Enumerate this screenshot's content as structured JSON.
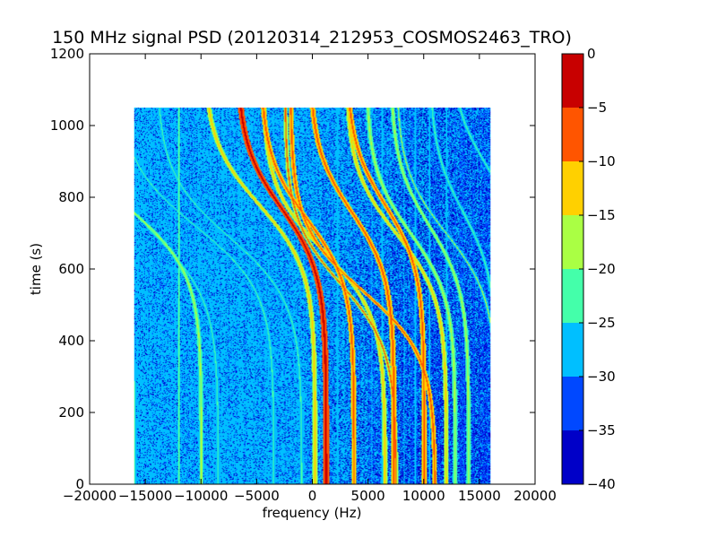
{
  "chart_data": {
    "type": "heatmap",
    "title": "150 MHz signal PSD (20120314_212953_COSMOS2463_TRO)",
    "xlabel": "frequency (Hz)",
    "ylabel": "time (s)",
    "xlim": [
      -20000,
      20000
    ],
    "ylim": [
      0,
      1200
    ],
    "xticks": [
      -20000,
      -15000,
      -10000,
      -5000,
      0,
      5000,
      10000,
      15000,
      20000
    ],
    "yticks": [
      0,
      200,
      400,
      600,
      800,
      1000,
      1200
    ],
    "data_extent": {
      "x": [
        -16000,
        16000
      ],
      "y": [
        0,
        1050
      ]
    },
    "colorbar": {
      "levels": [
        -40,
        -35,
        -30,
        -25,
        -20,
        -15,
        -10,
        -5,
        0
      ],
      "ticks": [
        0,
        -5,
        -10,
        -15,
        -20,
        -25,
        -30,
        -35,
        -40
      ],
      "colors": [
        "#0000c8",
        "#0048ff",
        "#00bfff",
        "#44ffaa",
        "#aaff44",
        "#ffd000",
        "#ff5500",
        "#c80000"
      ]
    },
    "background_level": -28,
    "tracks": [
      {
        "fc": -22000,
        "t0": 780,
        "hw": 6000,
        "w": 1.4,
        "level": -22
      },
      {
        "fc": -16500,
        "t0": 770,
        "hw": 6500,
        "w": 1.6,
        "level": -18
      },
      {
        "fc": -14000,
        "t0": 690,
        "hw": 5500,
        "w": 1.2,
        "level": -22
      },
      {
        "fc": -10500,
        "t0": 720,
        "hw": 7000,
        "w": 1.3,
        "level": -22
      },
      {
        "fc": -7500,
        "t0": 690,
        "hw": 6500,
        "w": 1.3,
        "level": -22
      },
      {
        "fc": -4800,
        "t0": 780,
        "hw": 5000,
        "w": 2.0,
        "level": -12
      },
      {
        "fc": -2800,
        "t0": 770,
        "hw": 4000,
        "w": 2.5,
        "level": -4
      },
      {
        "fc": -500,
        "t0": 740,
        "hw": 4200,
        "w": 2.0,
        "level": -8
      },
      {
        "fc": 1000,
        "t0": 650,
        "hw": 5500,
        "w": 1.8,
        "level": -12
      },
      {
        "fc": 2500,
        "t0": 560,
        "hw": 5000,
        "w": 1.6,
        "level": -10
      },
      {
        "fc": 3500,
        "t0": 760,
        "hw": 3800,
        "w": 2.2,
        "level": -6
      },
      {
        "fc": 4500,
        "t0": 540,
        "hw": 6500,
        "w": 1.8,
        "level": -8
      },
      {
        "fc": 6500,
        "t0": 780,
        "hw": 3500,
        "w": 2.0,
        "level": -8
      },
      {
        "fc": 7500,
        "t0": 700,
        "hw": 4500,
        "w": 1.8,
        "level": -14
      },
      {
        "fc": 8800,
        "t0": 700,
        "hw": 4000,
        "w": 1.8,
        "level": -16
      },
      {
        "fc": 10500,
        "t0": 720,
        "hw": 3500,
        "w": 1.6,
        "level": -16
      },
      {
        "fc": 12000,
        "t0": 700,
        "hw": 4500,
        "w": 1.4,
        "level": -20
      },
      {
        "fc": 13500,
        "t0": 760,
        "hw": 3000,
        "w": 1.4,
        "level": -22
      },
      {
        "fc": 15800,
        "t0": 880,
        "hw": 3500,
        "w": 1.4,
        "level": -22
      }
    ],
    "vertical_lines": [
      {
        "f": -12000,
        "level": -22
      },
      {
        "f": 2200,
        "level": -30
      },
      {
        "f": 5300,
        "level": -30
      },
      {
        "f": 6200,
        "level": -30
      },
      {
        "f": 8200,
        "level": -30
      },
      {
        "f": 9200,
        "level": -30
      },
      {
        "f": 10500,
        "level": -30
      },
      {
        "f": 12000,
        "level": -30
      }
    ]
  }
}
